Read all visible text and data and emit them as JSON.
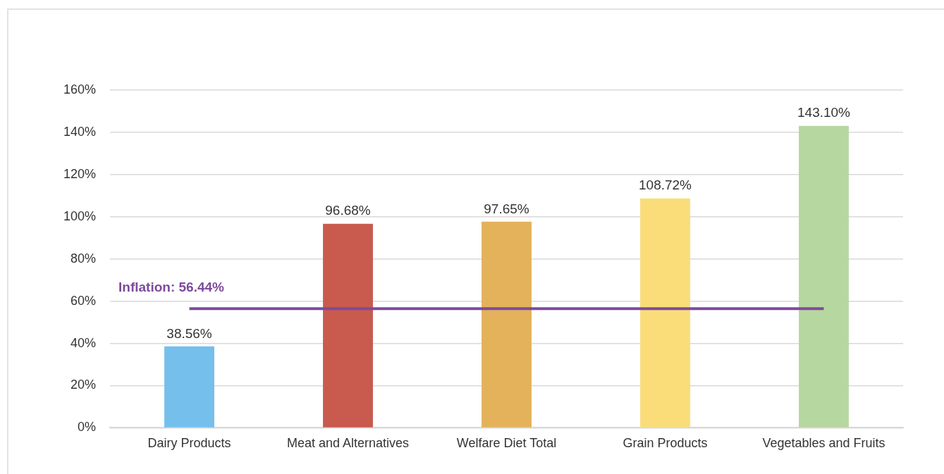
{
  "chart_data": {
    "type": "bar",
    "categories": [
      "Dairy Products",
      "Meat and Alternatives",
      "Welfare Diet Total",
      "Grain Products",
      "Vegetables and Fruits"
    ],
    "series": [
      {
        "colors": [
          "#75bfec",
          "#c85a4e",
          "#e3b25b",
          "#fadd79",
          "#b7d7a0"
        ],
        "values": [
          38.56,
          96.68,
          97.65,
          108.72,
          143.1
        ],
        "value_labels": [
          "38.56%",
          "96.68%",
          "97.65%",
          "108.72%",
          "143.10%"
        ]
      },
      {
        "type": "line",
        "name": "Inflation: 56.44%",
        "color": "#7e4a9c",
        "values": [
          56.44,
          56.44,
          56.44,
          56.44,
          56.44
        ],
        "marker": "none",
        "line_style": "solid"
      }
    ],
    "ylim": [
      0,
      160
    ],
    "yticks": [
      {
        "value": 0,
        "label": "0%"
      },
      {
        "value": 20,
        "label": "20%"
      },
      {
        "value": 40,
        "label": "40%"
      },
      {
        "value": 60,
        "label": "60%"
      },
      {
        "value": 80,
        "label": "80%"
      },
      {
        "value": 100,
        "label": "100%"
      },
      {
        "value": 120,
        "label": "120%"
      },
      {
        "value": 140,
        "label": "140%"
      },
      {
        "value": 160,
        "label": "160%"
      }
    ],
    "grid": "y",
    "legend": false
  }
}
